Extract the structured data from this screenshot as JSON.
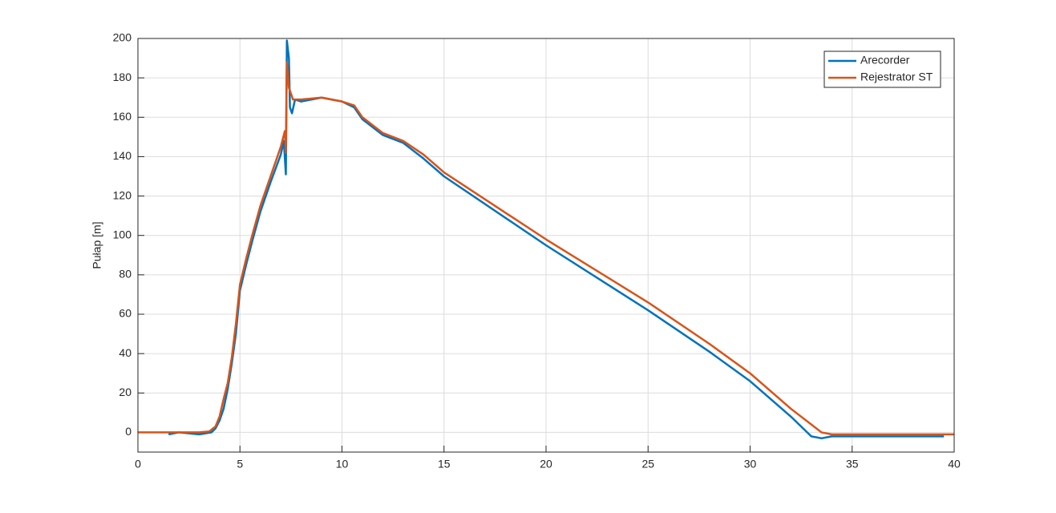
{
  "chart_data": {
    "type": "line",
    "ylabel": "Pułap [m]",
    "xlim": [
      0,
      40
    ],
    "ylim": [
      -10,
      200
    ],
    "xticks": [
      0,
      5,
      10,
      15,
      20,
      25,
      30,
      35,
      40
    ],
    "yticks": [
      0,
      20,
      40,
      60,
      80,
      100,
      120,
      140,
      160,
      180,
      200
    ],
    "grid": true,
    "legend": "top-right",
    "series": [
      {
        "name": "Arecorder",
        "color": "#0072bd",
        "x": [
          1.5,
          2,
          3,
          3.6,
          3.8,
          4,
          4.2,
          4.4,
          4.6,
          4.8,
          5,
          5.3,
          5.6,
          6,
          6.5,
          7,
          7.15,
          7.25,
          7.3,
          7.4,
          7.45,
          7.55,
          7.7,
          8,
          9,
          10,
          10.6,
          11,
          12,
          13,
          14,
          15,
          20,
          25,
          28,
          30,
          32,
          33,
          33.5,
          34,
          36,
          38,
          39.5
        ],
        "values": [
          -1,
          0,
          -1,
          0,
          2,
          6,
          12,
          22,
          35,
          50,
          72,
          85,
          97,
          112,
          127,
          141,
          148,
          131,
          199,
          190,
          165,
          162,
          169,
          168,
          170,
          168,
          165,
          159,
          151,
          147,
          139,
          130,
          95,
          62,
          41,
          26,
          8,
          -2,
          -3,
          -2,
          -2,
          -2,
          -2
        ]
      },
      {
        "name": "Rejestrator ST",
        "color": "#d95319",
        "x": [
          0,
          1,
          2,
          3,
          3.5,
          3.8,
          4,
          4.2,
          4.4,
          4.6,
          4.8,
          5,
          5.3,
          5.6,
          6,
          6.5,
          7,
          7.2,
          7.25,
          7.3,
          7.4,
          7.6,
          8,
          9,
          10,
          10.6,
          11,
          12,
          13,
          14,
          15,
          20,
          25,
          28,
          30,
          32,
          33.5,
          34,
          36,
          38,
          40
        ],
        "values": [
          0,
          0,
          0,
          0,
          0.5,
          3,
          8,
          17,
          25,
          38,
          55,
          75,
          88,
          100,
          115,
          130,
          145,
          153,
          142,
          188,
          175,
          169,
          169,
          170,
          168,
          166,
          160,
          152,
          148,
          141,
          132,
          98,
          66,
          45,
          30,
          12,
          0,
          -1,
          -1,
          -1,
          -1
        ]
      }
    ]
  }
}
